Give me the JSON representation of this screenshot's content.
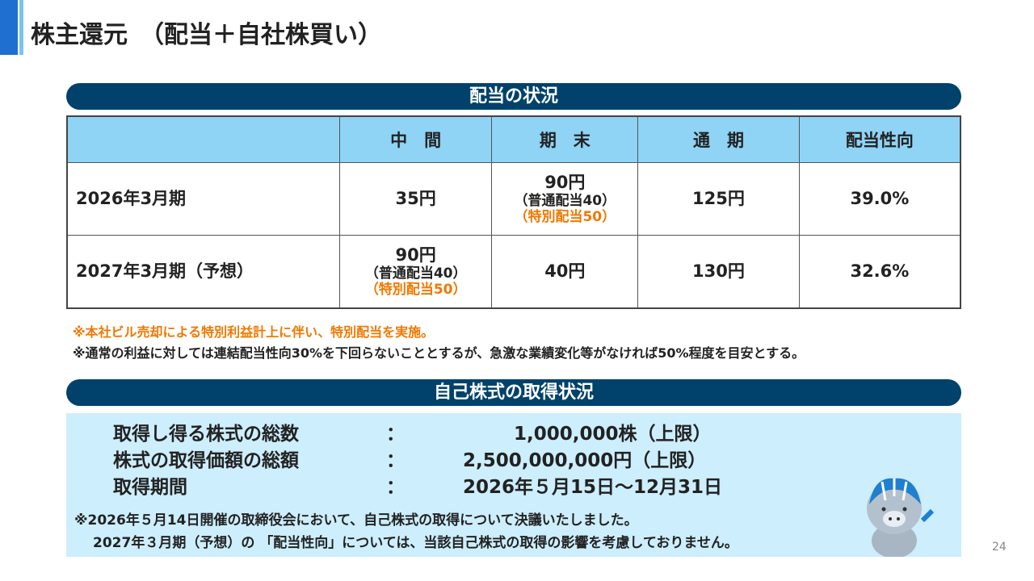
{
  "header": {
    "title": "株主還元　（配当＋自社株買い）"
  },
  "dividend": {
    "heading": "配当の状況",
    "table": {
      "columns": [
        "中　間",
        "期　末",
        "通　期",
        "配当性向"
      ],
      "rows": [
        {
          "label": "2026年3月期",
          "cells": [
            [
              "35円"
            ],
            [
              "90円",
              "（普通配当40）",
              "（特別配当50）"
            ],
            [
              "125円"
            ],
            [
              "39.0%"
            ]
          ]
        },
        {
          "label": "2027年3月期（予想）",
          "cells": [
            [
              "90円",
              "（普通配当40）",
              "（特別配当50）"
            ],
            [
              "40円"
            ],
            [
              "130円"
            ],
            [
              "32.6%"
            ]
          ]
        }
      ]
    },
    "notes": [
      "※本社ビル売却による特別利益計上に伴い、特別配当を実施。",
      "※通常の利益に対しては連結配当性向30%を下回らないこととするが、急激な業績変化等がなければ50%程度を目安とする。"
    ]
  },
  "buyback": {
    "heading": "自己株式の取得状況",
    "separator": "：",
    "items": [
      {
        "label": "取得し得る株式の総数",
        "value": "1,000,000株（上限）"
      },
      {
        "label": "株式の取得価額の総額",
        "value": "2,500,000,000円（上限）"
      },
      {
        "label": "取得期間",
        "value": "2026年５月15日～12月31日"
      }
    ],
    "notes": [
      "※2026年５月14日開催の取締役会において、自己株式の取得について決議いたしました。",
      "2027年３月期（予想）の 「配当性向」については、当該自己株式の取得の影響を考慮しておりません。"
    ]
  },
  "page_number": "24"
}
